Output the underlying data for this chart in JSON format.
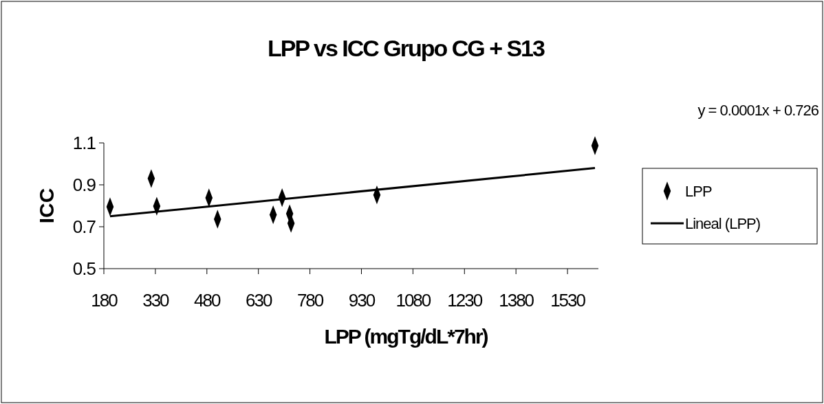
{
  "chart_data": {
    "type": "scatter",
    "title": "LPP vs ICC Grupo CG + S13",
    "xlabel": "LPP (mgTg/dL*7hr)",
    "ylabel": "ICC",
    "annotations": [
      "y = 0.0001x + 0.726"
    ],
    "xlim": [
      180,
      1620
    ],
    "xticks": [
      180,
      330,
      480,
      630,
      780,
      930,
      1080,
      1230,
      1380,
      1530
    ],
    "ylim": [
      0.5,
      1.1
    ],
    "yticks": [
      0.5,
      0.7,
      0.9,
      1.1
    ],
    "grid": false,
    "legend": "right",
    "series": [
      {
        "name": "LPP",
        "marker": "diamond",
        "color": "#000000",
        "x": [
          198,
          318,
          334,
          486,
          511,
          673,
          699,
          721,
          725,
          975,
          1610
        ],
        "values": [
          0.795,
          0.93,
          0.798,
          0.838,
          0.736,
          0.757,
          0.839,
          0.762,
          0.716,
          0.852,
          1.087
        ]
      },
      {
        "name": "Lineal (LPP)",
        "type": "line",
        "color": "#000000",
        "x": [
          198,
          1610
        ],
        "values": [
          0.75,
          0.98
        ],
        "marker": "none",
        "line_style": "solid"
      }
    ]
  }
}
